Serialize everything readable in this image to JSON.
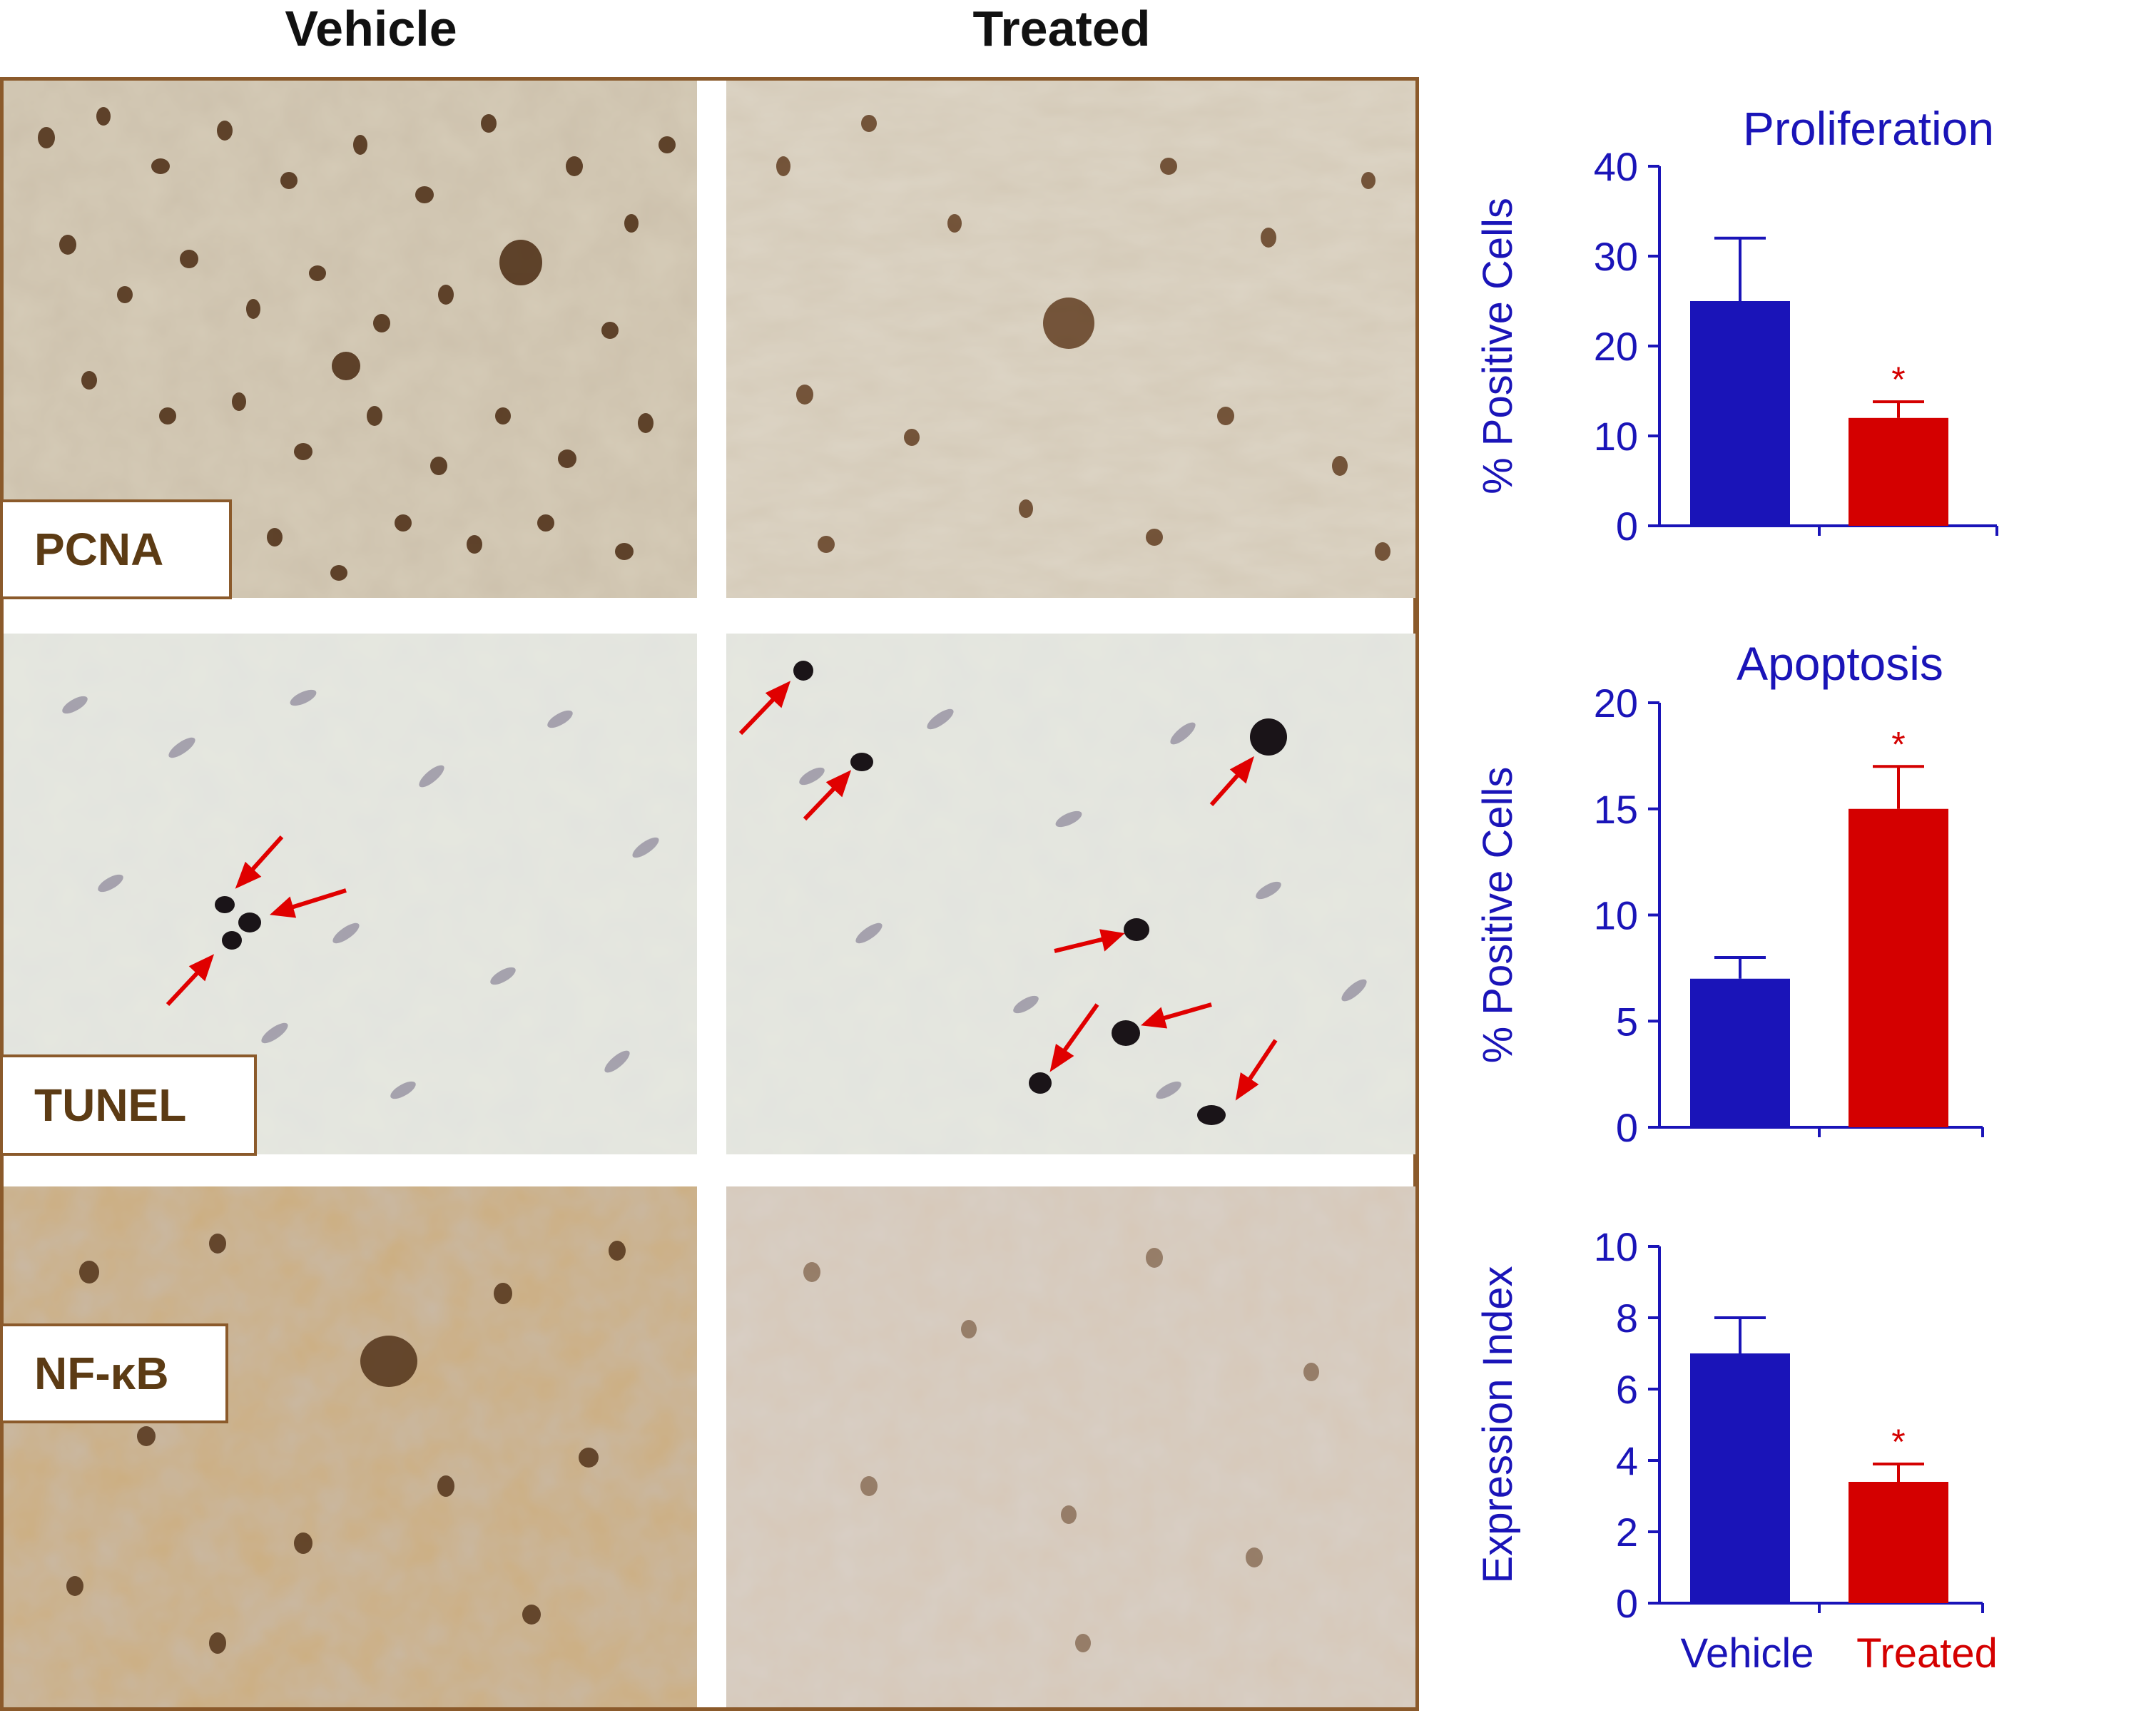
{
  "columns": [
    "Vehicle",
    "Treated"
  ],
  "stain_labels": [
    "PCNA",
    "TUNEL",
    "NF-κB"
  ],
  "colors": {
    "vehicle": "#1a14b8",
    "treated": "#d40000",
    "axis": "#1a14b8",
    "frame": "#8b5a2b",
    "stain_text": "#5c3b14"
  },
  "chart_data": [
    {
      "type": "bar",
      "title": "Proliferation",
      "ylabel": "% Positive Cells",
      "categories": [
        "Vehicle",
        "Treated"
      ],
      "values": [
        25,
        12
      ],
      "errors": [
        7,
        1.8
      ],
      "significance": [
        "",
        "*"
      ],
      "ylim": [
        0,
        40
      ],
      "yticks": [
        0,
        10,
        20,
        30,
        40
      ],
      "grid": false,
      "show_category_labels": false
    },
    {
      "type": "bar",
      "title": "Apoptosis",
      "ylabel": "% Positive Cells",
      "categories": [
        "Vehicle",
        "Treated"
      ],
      "values": [
        7,
        15
      ],
      "errors": [
        1,
        2
      ],
      "significance": [
        "",
        "*"
      ],
      "ylim": [
        0,
        20
      ],
      "yticks": [
        0,
        5,
        10,
        15,
        20
      ],
      "grid": false,
      "show_category_labels": false
    },
    {
      "type": "bar",
      "title": "",
      "ylabel": "Expression Index",
      "categories": [
        "Vehicle",
        "Treated"
      ],
      "values": [
        7,
        3.4
      ],
      "errors": [
        1,
        0.5
      ],
      "significance": [
        "",
        "*"
      ],
      "ylim": [
        0,
        10
      ],
      "yticks": [
        0,
        2,
        4,
        6,
        8,
        10
      ],
      "grid": false,
      "show_category_labels": true
    }
  ]
}
